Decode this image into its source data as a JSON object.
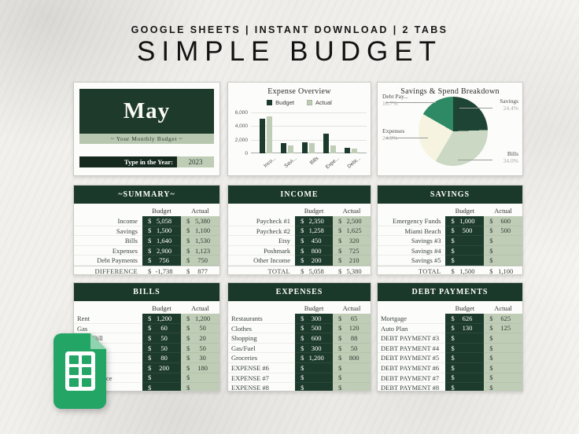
{
  "page": {
    "kicker": "GOOGLE SHEETS | INSTANT DOWNLOAD | 2 TABS",
    "title": "SIMPLE BUDGET"
  },
  "colors": {
    "dark_green": "#1d3b2c",
    "sage_green": "#bfcdb7",
    "pie_sage": "#cbd8c3",
    "pie_cream": "#f6f3e1",
    "pie_mid_green": "#2e8a64",
    "sheets_green": "#23a565"
  },
  "icons": {
    "logo": "google-sheets-icon"
  },
  "month_card": {
    "month": "May",
    "subtitle": "~ Your Monthly Budget ~",
    "year_label": "Type in the Year:",
    "year_value": "2023"
  },
  "chart_data": [
    {
      "type": "bar",
      "title": "Expense Overview",
      "categories": [
        "Income",
        "Savings",
        "Bills",
        "Expenses",
        "Debt Payments"
      ],
      "x_tick_labels": [
        "Inco...",
        "Savi...",
        "Bills",
        "Expe...",
        "Debt..."
      ],
      "series": [
        {
          "name": "Budget",
          "color": "#1d3b2c",
          "values": [
            5058,
            1500,
            1640,
            2900,
            756
          ]
        },
        {
          "name": "Actual",
          "color": "#bfcdb7",
          "values": [
            5380,
            1100,
            1530,
            1123,
            750
          ]
        }
      ],
      "ylim": [
        0,
        6000
      ],
      "y_ticks": [
        "6,000",
        "4,000",
        "2,000",
        "0"
      ],
      "grid": true,
      "legend_position": "top"
    },
    {
      "type": "pie",
      "title": "Savings & Spend Breakdown",
      "slices": [
        {
          "label": "Savings",
          "value": 24.4,
          "display": "24.4%",
          "color": "#1d4434"
        },
        {
          "label": "Bills",
          "value": 34.0,
          "display": "34.0%",
          "color": "#cbd8c3"
        },
        {
          "label": "Expenses",
          "value": 24.9,
          "display": "24.9%",
          "color": "#f6f3e1"
        },
        {
          "label": "Debt Pay...",
          "value": 16.7,
          "display": "16.7%",
          "color": "#2e8a64"
        }
      ],
      "legend_position": "none"
    }
  ],
  "tables": {
    "summary": {
      "title": "~SUMMARY~",
      "columns": [
        "Budget",
        "Actual"
      ],
      "rows": [
        {
          "label": "Income",
          "budget": "5,058",
          "actual": "5,380"
        },
        {
          "label": "Savings",
          "budget": "1,500",
          "actual": "1,100"
        },
        {
          "label": "Bills",
          "budget": "1,640",
          "actual": "1,530"
        },
        {
          "label": "Expenses",
          "budget": "2,900",
          "actual": "1,123"
        },
        {
          "label": "Debt Payments",
          "budget": "756",
          "actual": "750"
        }
      ],
      "total": {
        "label": "DIFFERENCE",
        "budget": "-1,738",
        "actual": "877"
      }
    },
    "income": {
      "title": "INCOME",
      "columns": [
        "Budget",
        "Actual"
      ],
      "rows": [
        {
          "label": "Paycheck #1",
          "budget": "2,350",
          "actual": "2,500"
        },
        {
          "label": "Paycheck #2",
          "budget": "1,258",
          "actual": "1,625"
        },
        {
          "label": "Etsy",
          "budget": "450",
          "actual": "320"
        },
        {
          "label": "Poshmark",
          "budget": "800",
          "actual": "725"
        },
        {
          "label": "Other Income",
          "budget": "200",
          "actual": "210"
        }
      ],
      "total": {
        "label": "TOTAL",
        "budget": "5,058",
        "actual": "5,380"
      }
    },
    "savings": {
      "title": "SAVINGS",
      "columns": [
        "Budget",
        "Actual"
      ],
      "rows": [
        {
          "label": "Emergency Funds",
          "budget": "1,000",
          "actual": "600"
        },
        {
          "label": "Miami Beach",
          "budget": "500",
          "actual": "500"
        },
        {
          "label": "Savings #3",
          "budget": "",
          "actual": ""
        },
        {
          "label": "Savings #4",
          "budget": "",
          "actual": ""
        },
        {
          "label": "Savings #5",
          "budget": "",
          "actual": ""
        }
      ],
      "total": {
        "label": "TOTAL",
        "budget": "1,500",
        "actual": "1,100"
      }
    },
    "bills": {
      "title": "BILLS",
      "columns": [
        "Budget",
        "Actual"
      ],
      "rows": [
        {
          "label": "Rent",
          "budget": "1,200",
          "actual": "1,200"
        },
        {
          "label": "Gas",
          "budget": "60",
          "actual": "50"
        },
        {
          "label": "Bill",
          "budget": "50",
          "actual": "20"
        },
        {
          "label": "",
          "budget": "50",
          "actual": "50"
        },
        {
          "label": "",
          "budget": "80",
          "actual": "30"
        },
        {
          "label": "",
          "budget": "200",
          "actual": "180"
        },
        {
          "label": "ce",
          "budget": "",
          "actual": ""
        },
        {
          "label": "",
          "budget": "",
          "actual": ""
        }
      ]
    },
    "expenses": {
      "title": "EXPENSES",
      "columns": [
        "Budget",
        "Actual"
      ],
      "rows": [
        {
          "label": "Restaurants",
          "budget": "300",
          "actual": "65"
        },
        {
          "label": "Clothes",
          "budget": "500",
          "actual": "120"
        },
        {
          "label": "Shopping",
          "budget": "600",
          "actual": "88"
        },
        {
          "label": "Gas/Fuel",
          "budget": "300",
          "actual": "50"
        },
        {
          "label": "Groceries",
          "budget": "1,200",
          "actual": "800"
        },
        {
          "label": "EXPENSE #6",
          "budget": "",
          "actual": ""
        },
        {
          "label": "EXPENSE #7",
          "budget": "",
          "actual": ""
        },
        {
          "label": "EXPENSE #8",
          "budget": "",
          "actual": ""
        }
      ]
    },
    "debt": {
      "title": "DEBT PAYMENTS",
      "columns": [
        "Budget",
        "Actual"
      ],
      "rows": [
        {
          "label": "Mortgage",
          "budget": "626",
          "actual": "625"
        },
        {
          "label": "Auto Plan",
          "budget": "130",
          "actual": "125"
        },
        {
          "label": "DEBT PAYMENT #3",
          "budget": "",
          "actual": ""
        },
        {
          "label": "DEBT PAYMENT #4",
          "budget": "",
          "actual": ""
        },
        {
          "label": "DEBT PAYMENT #5",
          "budget": "",
          "actual": ""
        },
        {
          "label": "DEBT PAYMENT #6",
          "budget": "",
          "actual": ""
        },
        {
          "label": "DEBT PAYMENT #7",
          "budget": "",
          "actual": ""
        },
        {
          "label": "DEBT PAYMENT #8",
          "budget": "",
          "actual": ""
        }
      ]
    }
  }
}
